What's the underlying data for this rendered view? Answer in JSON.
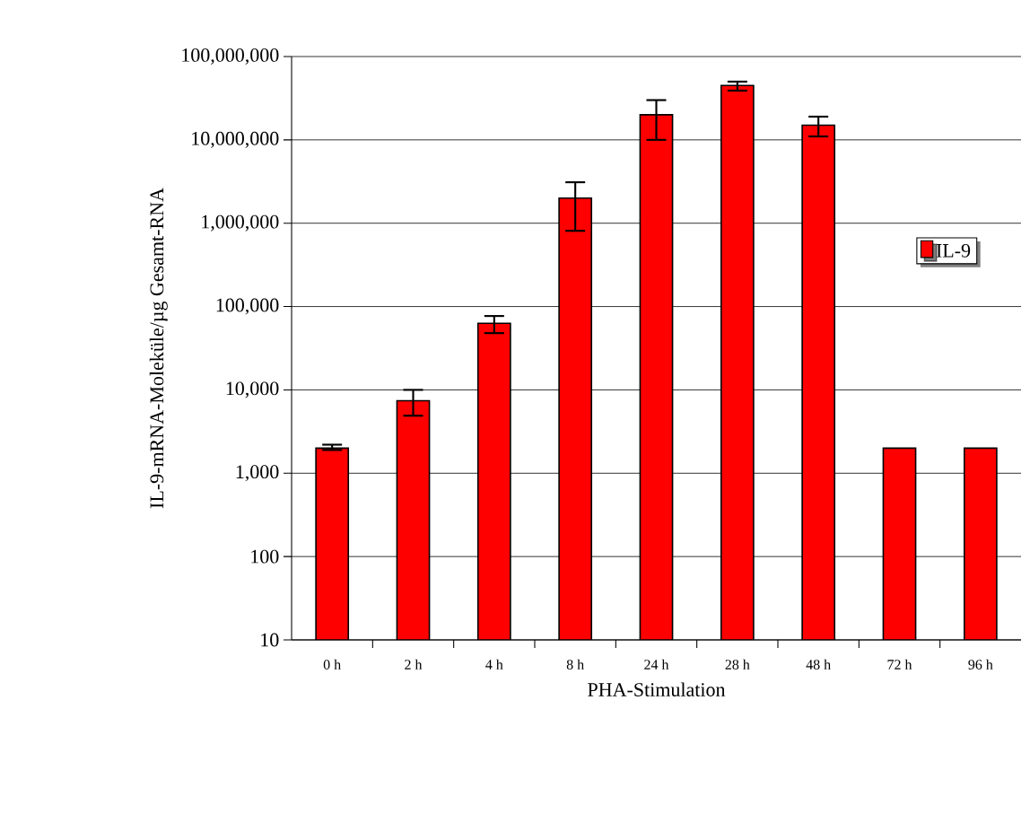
{
  "chart_data": {
    "type": "bar",
    "xlabel": "PHA-Stimulation",
    "ylabel": "IL-9-mRNA-Moleküle/µg Gesamt-RNA",
    "categories": [
      "0 h",
      "2 h",
      "4 h",
      "8 h",
      "24 h",
      "28 h",
      "48 h",
      "72 h",
      "96 h"
    ],
    "series": [
      {
        "name": "IL-9",
        "color": "#ff0000",
        "values": [
          2000,
          7400,
          63000,
          2000000,
          20000000,
          45000000,
          15000000,
          2000,
          2000
        ],
        "errors": [
          [
            1900,
            2200
          ],
          [
            4900,
            10000
          ],
          [
            48000,
            77000
          ],
          [
            810000,
            3100000
          ],
          [
            10000000,
            30000000
          ],
          [
            39000000,
            50000000
          ],
          [
            11000000,
            19000000
          ],
          null,
          null
        ]
      }
    ],
    "log": true,
    "ylim": [
      10,
      100000000
    ],
    "yticks": [
      {
        "value": 10,
        "label": "10"
      },
      {
        "value": 100,
        "label": "100"
      },
      {
        "value": 1000,
        "label": "1,000"
      },
      {
        "value": 10000,
        "label": "10,000"
      },
      {
        "value": 100000,
        "label": "100,000"
      },
      {
        "value": 1000000,
        "label": "1,000,000"
      },
      {
        "value": 10000000,
        "label": "10,000,000"
      },
      {
        "value": 100000000,
        "label": "100,000,000"
      }
    ],
    "grid": "y",
    "legend": "right"
  }
}
